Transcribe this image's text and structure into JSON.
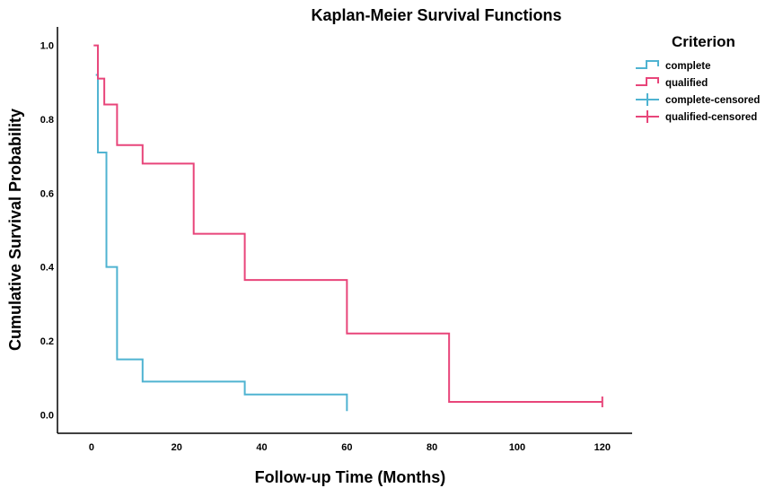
{
  "chart_data": {
    "type": "line",
    "title": "Kaplan-Meier Survival Functions",
    "xlabel": "Follow-up Time (Months)",
    "ylabel": "Cumulative Survival Probability",
    "xlim": [
      -8,
      127
    ],
    "ylim": [
      -0.05,
      1.05
    ],
    "xticks": [
      0,
      20,
      40,
      60,
      80,
      100,
      120
    ],
    "xtick_labels": [
      "0",
      "20",
      "40",
      "60",
      "80",
      "100",
      "120"
    ],
    "yticks": [
      0.0,
      0.2,
      0.4,
      0.6,
      0.8,
      1.0
    ],
    "ytick_labels": [
      "0.0",
      "0.2",
      "0.4",
      "0.6",
      "0.8",
      "1.0"
    ],
    "grid": false,
    "legend": {
      "title": "Criterion",
      "position": "top-right",
      "entries": [
        {
          "label": "complete",
          "symbol": "step",
          "color": "#4fb3d1"
        },
        {
          "label": "qualified",
          "symbol": "step",
          "color": "#e8457a"
        },
        {
          "label": "complete-censored",
          "symbol": "censor",
          "color": "#4fb3d1"
        },
        {
          "label": "qualified-censored",
          "symbol": "censor",
          "color": "#e8457a"
        }
      ]
    },
    "series": [
      {
        "name": "complete",
        "color": "#4fb3d1",
        "steps": [
          {
            "x": 1,
            "y": 0.92
          },
          {
            "x": 1.5,
            "y": 0.71
          },
          {
            "x": 3.5,
            "y": 0.4
          },
          {
            "x": 6,
            "y": 0.15
          },
          {
            "x": 12,
            "y": 0.09
          },
          {
            "x": 36,
            "y": 0.055
          },
          {
            "x": 60,
            "y": 0.01
          }
        ],
        "censored": []
      },
      {
        "name": "qualified",
        "color": "#e8457a",
        "steps": [
          {
            "x": 0.5,
            "y": 1.0
          },
          {
            "x": 1.5,
            "y": 0.91
          },
          {
            "x": 3,
            "y": 0.84
          },
          {
            "x": 6,
            "y": 0.73
          },
          {
            "x": 12,
            "y": 0.68
          },
          {
            "x": 24,
            "y": 0.49
          },
          {
            "x": 36,
            "y": 0.365
          },
          {
            "x": 60,
            "y": 0.22
          },
          {
            "x": 84,
            "y": 0.035
          },
          {
            "x": 120,
            "y": 0.035
          }
        ],
        "censored": [
          {
            "x": 120,
            "y": 0.035
          }
        ]
      }
    ]
  }
}
